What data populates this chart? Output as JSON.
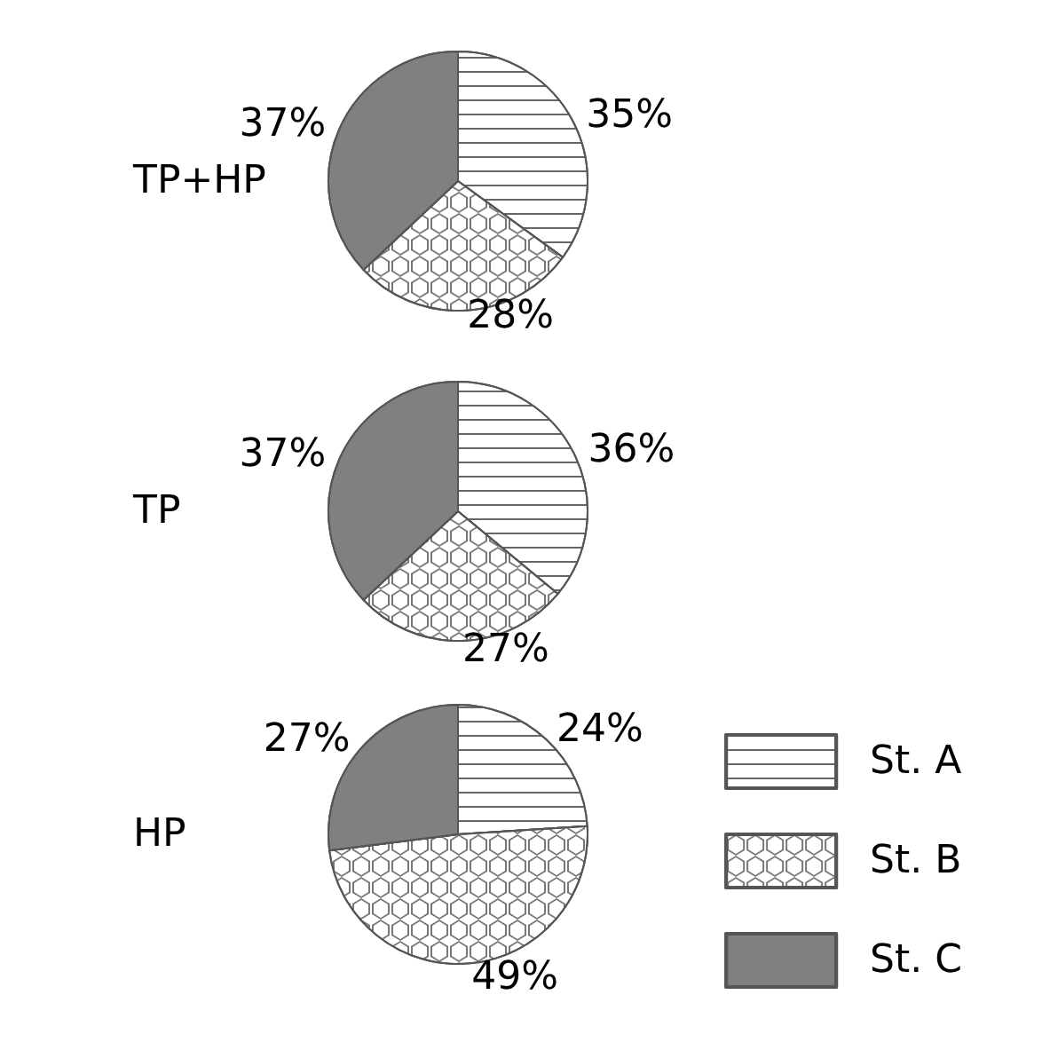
{
  "chart_data": [
    {
      "type": "pie",
      "title": "TP+HP",
      "categories": [
        null,
        null,
        null
      ],
      "values": [
        35,
        28,
        37
      ],
      "colors": [
        "#ffffff",
        "#ffffff",
        "#808080"
      ],
      "value_labels": [
        "35%",
        "28%",
        "37%"
      ]
    },
    {
      "type": "pie",
      "title": "TP",
      "categories": [
        null,
        null,
        null
      ],
      "values": [
        36,
        27,
        37
      ],
      "colors": [
        "#ffffff",
        "#ffffff",
        "#808080"
      ],
      "value_labels": [
        "36%",
        "27%",
        "37%"
      ]
    },
    {
      "type": "pie",
      "title": "HP",
      "categories": [
        "St. A",
        "St. B",
        "St. C"
      ],
      "values": [
        24,
        49,
        27
      ],
      "colors": [
        "#ffffff",
        "#ffffff",
        "#808080"
      ],
      "value_labels": [
        "24%",
        "49%",
        "27%"
      ],
      "legend": "right"
    }
  ]
}
